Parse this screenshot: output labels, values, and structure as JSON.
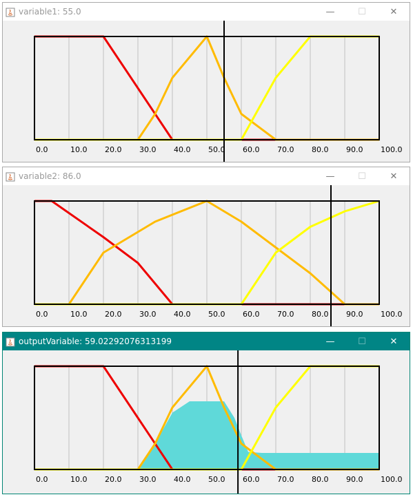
{
  "windows": [
    {
      "title": "variable1: 55.0",
      "marker": 55.0,
      "active": false,
      "controls": {
        "minimize": "—",
        "maximize": "☐",
        "close": "✕"
      },
      "chart_data": {
        "type": "line",
        "xlim": [
          0,
          100
        ],
        "ylim": [
          0,
          1
        ],
        "x_ticks": [
          "0.0",
          "10.0",
          "20.0",
          "30.0",
          "40.0",
          "50.0",
          "60.0",
          "70.0",
          "80.0",
          "90.0",
          "100.0"
        ],
        "grid": true,
        "series": [
          {
            "color": "#ee0000",
            "points": [
              [
                0,
                1
              ],
              [
                20,
                1
              ],
              [
                25,
                0.75
              ],
              [
                30,
                0.5
              ],
              [
                35,
                0.25
              ],
              [
                40,
                0
              ],
              [
                60,
                0
              ],
              [
                70,
                0
              ]
            ]
          },
          {
            "color": "#ffbb00",
            "points": [
              [
                0,
                0
              ],
              [
                30,
                0
              ],
              [
                35,
                0.25
              ],
              [
                40,
                0.6
              ],
              [
                50,
                1
              ],
              [
                55,
                0.6
              ],
              [
                60,
                0.25
              ],
              [
                70,
                0
              ],
              [
                100,
                0
              ]
            ]
          },
          {
            "color": "#ffff00",
            "points": [
              [
                0,
                0
              ],
              [
                60,
                0
              ],
              [
                65,
                0.3
              ],
              [
                70,
                0.6
              ],
              [
                80,
                1
              ],
              [
                100,
                1
              ]
            ]
          }
        ]
      }
    },
    {
      "title": "variable2: 86.0",
      "marker": 86.0,
      "active": false,
      "controls": {
        "minimize": "—",
        "maximize": "☐",
        "close": "✕"
      },
      "chart_data": {
        "type": "line",
        "xlim": [
          0,
          100
        ],
        "ylim": [
          0,
          1
        ],
        "x_ticks": [
          "0.0",
          "10.0",
          "20.0",
          "30.0",
          "40.0",
          "50.0",
          "60.0",
          "70.0",
          "80.0",
          "90.0",
          "100.0"
        ],
        "grid": true,
        "series": [
          {
            "color": "#ee0000",
            "points": [
              [
                0,
                1
              ],
              [
                5,
                1
              ],
              [
                20,
                0.65
              ],
              [
                30,
                0.4
              ],
              [
                40,
                0
              ],
              [
                60,
                0
              ],
              [
                90,
                0
              ]
            ]
          },
          {
            "color": "#ffbb00",
            "points": [
              [
                0,
                0
              ],
              [
                10,
                0
              ],
              [
                20,
                0.5
              ],
              [
                35,
                0.8
              ],
              [
                50,
                1
              ],
              [
                60,
                0.8
              ],
              [
                70,
                0.55
              ],
              [
                80,
                0.3
              ],
              [
                90,
                0
              ],
              [
                100,
                0
              ]
            ]
          },
          {
            "color": "#ffff00",
            "points": [
              [
                0,
                0
              ],
              [
                60,
                0
              ],
              [
                65,
                0.25
              ],
              [
                70,
                0.5
              ],
              [
                80,
                0.75
              ],
              [
                90,
                0.9
              ],
              [
                100,
                1
              ]
            ]
          }
        ]
      }
    },
    {
      "title": "outputVariable: 59.02292076313199",
      "marker": 59.02292076313199,
      "active": true,
      "controls": {
        "minimize": "—",
        "maximize": "☐",
        "close": "✕"
      },
      "chart_data": {
        "type": "area",
        "xlim": [
          0,
          100
        ],
        "ylim": [
          0,
          1
        ],
        "x_ticks": [
          "0.0",
          "10.0",
          "20.0",
          "30.0",
          "40.0",
          "50.0",
          "60.0",
          "70.0",
          "80.0",
          "90.0",
          "100.0"
        ],
        "grid": true,
        "fill_color": "#5fd9d9",
        "aggregate": [
          [
            30,
            0
          ],
          [
            35,
            0.25
          ],
          [
            40,
            0.55
          ],
          [
            45,
            0.66
          ],
          [
            55,
            0.66
          ],
          [
            58,
            0.5
          ],
          [
            60,
            0.33
          ],
          [
            62,
            0.17
          ],
          [
            66,
            0.16
          ],
          [
            100,
            0.16
          ]
        ],
        "series": [
          {
            "color": "#ee0000",
            "points": [
              [
                0,
                1
              ],
              [
                20,
                1
              ],
              [
                25,
                0.75
              ],
              [
                30,
                0.5
              ],
              [
                35,
                0.25
              ],
              [
                40,
                0
              ],
              [
                60,
                0
              ],
              [
                70,
                0
              ]
            ]
          },
          {
            "color": "#ffbb00",
            "points": [
              [
                0,
                0
              ],
              [
                30,
                0
              ],
              [
                35,
                0.25
              ],
              [
                40,
                0.6
              ],
              [
                50,
                1
              ],
              [
                55,
                0.6
              ],
              [
                60,
                0.25
              ],
              [
                70,
                0
              ],
              [
                100,
                0
              ]
            ]
          },
          {
            "color": "#ffff00",
            "points": [
              [
                0,
                0
              ],
              [
                60,
                0
              ],
              [
                65,
                0.3
              ],
              [
                70,
                0.6
              ],
              [
                80,
                1
              ],
              [
                100,
                1
              ]
            ]
          }
        ]
      }
    }
  ]
}
